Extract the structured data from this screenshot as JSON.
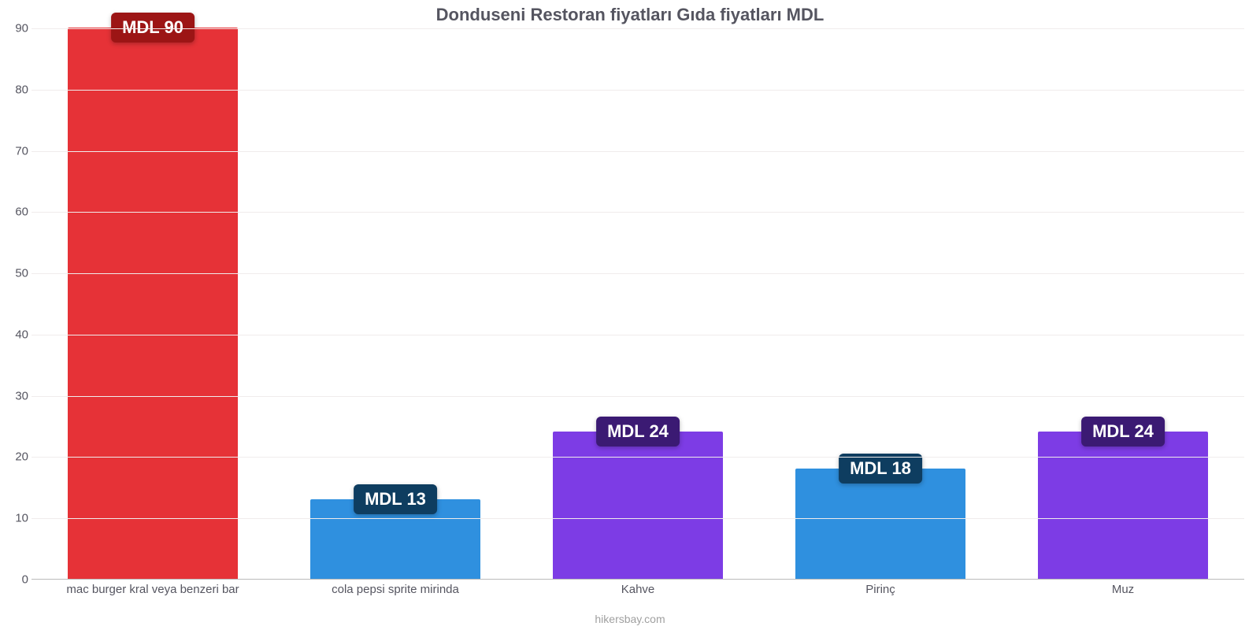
{
  "chart": {
    "type": "bar",
    "title": "Donduseni Restoran fiyatları Gıda fiyatları MDL",
    "title_fontsize": 22,
    "title_color": "#555560",
    "background_color": "#ffffff",
    "grid_color": "#f0ecec",
    "axis_color": "#bbbbbb",
    "tick_fontsize": 15,
    "xlabel_fontsize": 15,
    "label_color": "#555560",
    "ylim_min": 0,
    "ylim_max": 90,
    "ytick_step": 10,
    "yticks": [
      "0",
      "10",
      "20",
      "30",
      "40",
      "50",
      "60",
      "70",
      "80",
      "90"
    ],
    "bar_width_pct": 70,
    "categories": [
      "mac burger kral veya benzeri bar",
      "cola pepsi sprite mirinda",
      "Kahve",
      "Pirinç",
      "Muz"
    ],
    "values": [
      90,
      13,
      24,
      18,
      24
    ],
    "bar_colors": [
      "#e63237",
      "#2f90df",
      "#7d3ce5",
      "#2f90df",
      "#7d3ce5"
    ],
    "value_labels": [
      "MDL 90",
      "MDL 13",
      "MDL 24",
      "MDL 18",
      "MDL 24"
    ],
    "badge_colors": [
      "#9c1515",
      "#0e3d60",
      "#3b1a73",
      "#0e3d60",
      "#3b1a73"
    ],
    "badge_text_color": "#ffffff",
    "badge_fontsize": 22,
    "attribution": "hikersbay.com",
    "attribution_fontsize": 14,
    "attribution_color": "#a0a0a0"
  }
}
